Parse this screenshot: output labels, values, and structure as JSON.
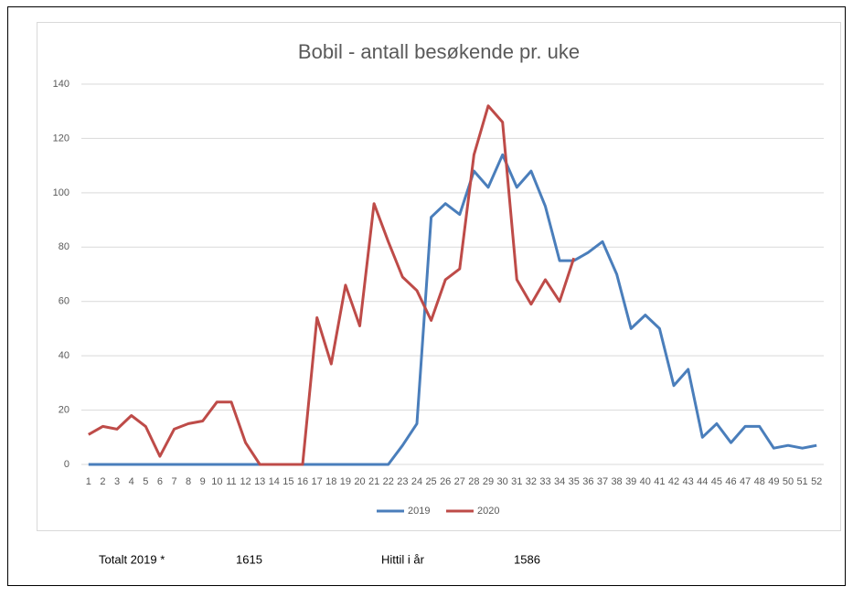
{
  "chart_data": {
    "type": "line",
    "title": "Bobil - antall besøkende pr. uke",
    "categories": [
      "1",
      "2",
      "3",
      "4",
      "5",
      "6",
      "7",
      "8",
      "9",
      "10",
      "11",
      "12",
      "13",
      "14",
      "15",
      "16",
      "17",
      "18",
      "19",
      "20",
      "21",
      "22",
      "23",
      "24",
      "25",
      "26",
      "27",
      "28",
      "29",
      "30",
      "31",
      "32",
      "33",
      "34",
      "35",
      "36",
      "37",
      "38",
      "39",
      "40",
      "41",
      "42",
      "43",
      "44",
      "45",
      "46",
      "47",
      "48",
      "49",
      "50",
      "51",
      "52"
    ],
    "series": [
      {
        "name": "2019",
        "color": "#4a7ebb",
        "values": [
          0,
          0,
          0,
          0,
          0,
          0,
          0,
          0,
          0,
          0,
          0,
          0,
          0,
          0,
          0,
          0,
          0,
          0,
          0,
          0,
          0,
          0,
          7,
          15,
          91,
          96,
          92,
          108,
          102,
          114,
          102,
          108,
          95,
          75,
          75,
          78,
          82,
          70,
          50,
          55,
          50,
          29,
          35,
          10,
          15,
          8,
          14,
          14,
          6,
          7,
          6,
          7
        ]
      },
      {
        "name": "2020",
        "color": "#be4b48",
        "values": [
          11,
          14,
          13,
          18,
          14,
          3,
          13,
          15,
          16,
          23,
          23,
          8,
          0,
          0,
          0,
          0,
          54,
          37,
          66,
          51,
          96,
          82,
          69,
          64,
          53,
          68,
          72,
          114,
          132,
          126,
          68,
          59,
          68,
          60,
          76,
          null,
          null,
          null,
          null,
          null,
          null,
          null,
          null,
          null,
          null,
          null,
          null,
          null,
          null,
          null,
          null,
          null
        ]
      }
    ],
    "ylim": [
      0,
      140
    ],
    "yticks": [
      0,
      20,
      40,
      60,
      80,
      100,
      120,
      140
    ],
    "grid": true,
    "legend": "bottom"
  },
  "summary": {
    "total_label": "Totalt 2019 *",
    "total_value": "1615",
    "ytd_label": "Hittil i år",
    "ytd_value": "1586"
  }
}
